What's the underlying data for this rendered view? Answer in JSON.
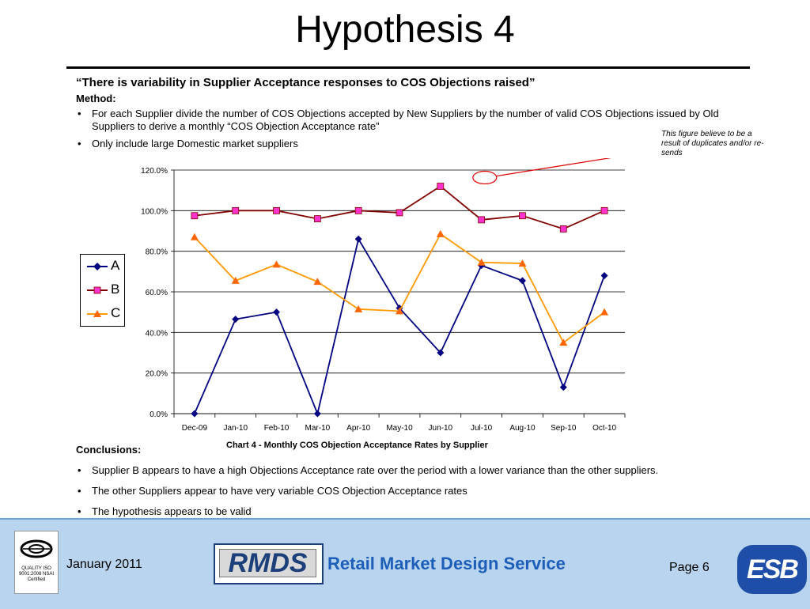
{
  "title": "Hypothesis 4",
  "quote": "“There is variability in Supplier Acceptance responses to COS Objections raised”",
  "method_heading": "Method:",
  "method_bullets": [
    "For each Supplier divide the number of COS Objections accepted by New Suppliers by the number of valid COS Objections issued by Old Suppliers to derive a monthly “COS Objection Acceptance rate”",
    "Only include large Domestic market suppliers"
  ],
  "annotation": "This figure believe to be a result of duplicates and/or re-sends",
  "chart_data": {
    "type": "line",
    "title": "Chart 4 - Monthly COS Objection Acceptance Rates by Supplier",
    "categories": [
      "Dec-09",
      "Jan-10",
      "Feb-10",
      "Mar-10",
      "Apr-10",
      "May-10",
      "Jun-10",
      "Jul-10",
      "Aug-10",
      "Sep-10",
      "Oct-10"
    ],
    "series": [
      {
        "name": "A",
        "color": "#000080",
        "marker": "diamond",
        "values": [
          0.0,
          46.5,
          50.0,
          0.0,
          86.0,
          52.0,
          30.0,
          73.0,
          65.5,
          13.0,
          68.0
        ]
      },
      {
        "name": "B",
        "color": "#800000",
        "marker": "square",
        "marker_color": "#ff33cc",
        "values": [
          97.5,
          100.0,
          100.0,
          96.0,
          100.0,
          99.0,
          112.0,
          95.5,
          97.5,
          91.0,
          100.0
        ]
      },
      {
        "name": "C",
        "color": "#ff9900",
        "marker": "triangle",
        "marker_color": "#ff6600",
        "values": [
          87.0,
          65.5,
          73.5,
          65.0,
          51.5,
          50.5,
          88.5,
          74.5,
          74.0,
          35.0,
          50.0
        ]
      }
    ],
    "ylim": [
      0,
      120
    ],
    "yticks": [
      "0.0%",
      "20.0%",
      "40.0%",
      "60.0%",
      "80.0%",
      "100.0%",
      "120.0%"
    ],
    "grid": true,
    "legend_position": "left",
    "highlight": {
      "series": "B",
      "category": "Jun-10"
    }
  },
  "conclusions_heading": "Conclusions:",
  "conclusions": [
    "Supplier B appears to have a high Objections Acceptance rate over the period with a lower variance than the other suppliers.",
    "The other Suppliers appear to have very variable COS Objection Acceptance rates",
    "The hypothesis appears to be valid"
  ],
  "footer": {
    "date": "January 2011",
    "rmds_logo": "RMDS",
    "service_name": "Retail Market Design Service",
    "page": "Page 6",
    "esb_logo": "ESB",
    "nsai_text": "QUALITY ISO 9001:2008 NSAI Certified"
  }
}
